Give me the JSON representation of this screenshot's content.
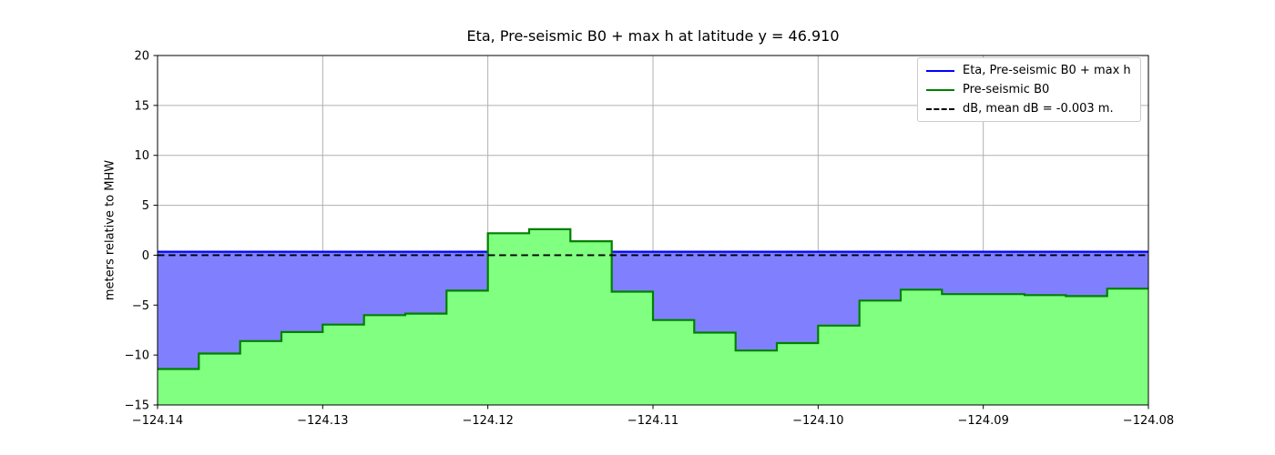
{
  "chart_data": {
    "type": "area",
    "title": "Eta, Pre-seismic B0 + max h at latitude y = 46.910",
    "xlabel": "",
    "ylabel": "meters relative to MHW",
    "xlim": [
      -124.14,
      -124.08
    ],
    "ylim": [
      -15,
      20
    ],
    "grid": true,
    "grid_color": "#b0b0b0",
    "background_color": "#ffffff",
    "x_ticks": {
      "values": [
        -124.14,
        -124.13,
        -124.12,
        -124.11,
        -124.1,
        -124.09,
        -124.08
      ],
      "labels": [
        "−124.14",
        "−124.13",
        "−124.12",
        "−124.11",
        "−124.10",
        "−124.09",
        "−124.08"
      ]
    },
    "y_ticks": {
      "values": [
        20,
        15,
        10,
        5,
        0,
        -5,
        -10,
        -15
      ],
      "labels": [
        "20",
        "15",
        "10",
        "5",
        "0",
        "−5",
        "−10",
        "−15"
      ]
    },
    "series": [
      {
        "name": "Eta, Pre-seismic B0 + max h",
        "type": "line",
        "style": "solid",
        "color": "#0000ff",
        "value": 0.35,
        "fill_below_color": "#8080ff",
        "note": "constant water-surface level filled down to topography"
      },
      {
        "name": "Pre-seismic B0",
        "type": "steps",
        "style": "solid",
        "color": "#008000",
        "fill_below_color": "#80ff80",
        "cell_edges": [
          -124.14,
          -124.1375,
          -124.135,
          -124.1325,
          -124.13,
          -124.1275,
          -124.125,
          -124.1225,
          -124.12,
          -124.1175,
          -124.115,
          -124.1125,
          -124.11,
          -124.1075,
          -124.105,
          -124.1025,
          -124.1,
          -124.0975,
          -124.095,
          -124.0925,
          -124.09,
          -124.0875,
          -124.085,
          -124.0825,
          -124.08
        ],
        "values": [
          -11.4,
          -9.85,
          -8.6,
          -7.7,
          -6.95,
          -6.0,
          -5.85,
          -3.55,
          2.2,
          2.6,
          1.4,
          -3.65,
          -6.5,
          -7.75,
          -9.55,
          -8.8,
          -7.05,
          -4.55,
          -3.45,
          -3.9,
          -3.9,
          -4.0,
          -4.1,
          -3.35
        ]
      },
      {
        "name": "dB, mean dB = -0.003 m.",
        "type": "line",
        "style": "dashed",
        "color": "#000000",
        "value": -0.003
      }
    ],
    "legend": {
      "position": "upper right",
      "entries": [
        {
          "label": "Eta, Pre-seismic B0 + max h",
          "color": "#0000ff",
          "style": "solid"
        },
        {
          "label": "Pre-seismic B0",
          "color": "#008000",
          "style": "solid"
        },
        {
          "label": "dB, mean dB = -0.003 m.",
          "color": "#000000",
          "style": "dashed"
        }
      ]
    }
  }
}
